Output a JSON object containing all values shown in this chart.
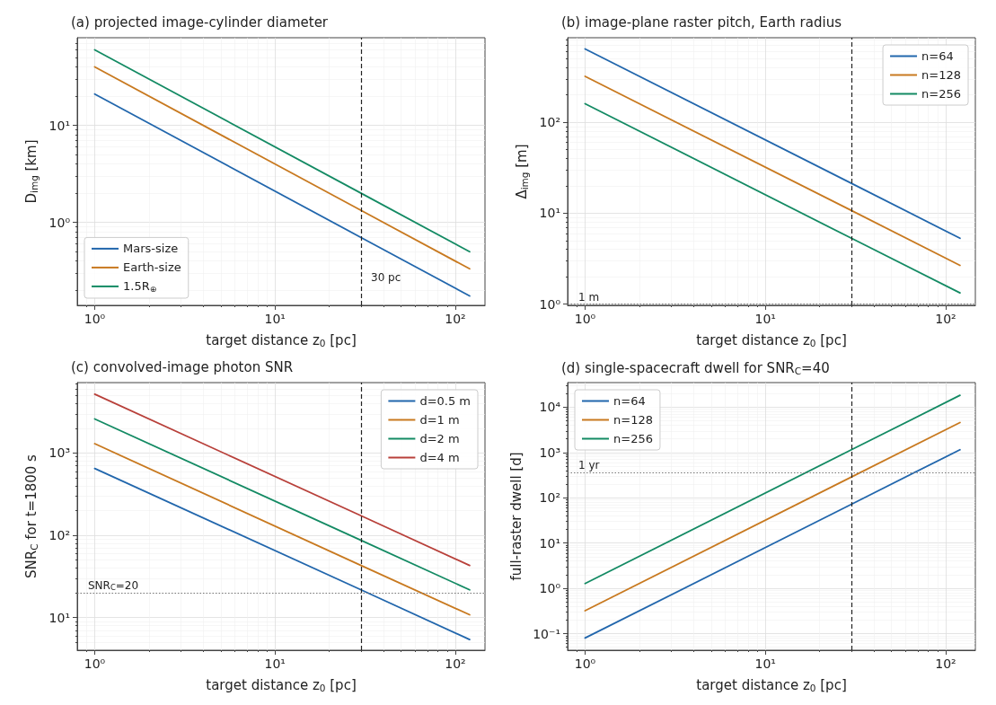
{
  "chart_data": [
    {
      "type": "line",
      "title": "(a) projected image-cylinder diameter",
      "xlabel": "target distance z$_{0}$ [pc]",
      "ylabel": "D$_{img}$ [km]",
      "log": "xy",
      "grid": true,
      "legend": "bottom left",
      "x": [
        1,
        30,
        120
      ],
      "xlim": [
        0.8,
        146
      ],
      "xticks": [
        {
          "value": 1,
          "label": "10⁰"
        },
        {
          "value": 10,
          "label": "10¹"
        },
        {
          "value": 100,
          "label": "10²"
        }
      ],
      "ylim": [
        0.14,
        80
      ],
      "yticks": [
        {
          "value": 1,
          "label": "10⁰"
        },
        {
          "value": 10,
          "label": "10¹"
        }
      ],
      "series": [
        {
          "name": "Mars-size",
          "color": "#2166ac",
          "values": [
            21,
            0.7,
            0.175
          ]
        },
        {
          "name": "Earth-size",
          "color": "#c8791f",
          "values": [
            40,
            1.33,
            0.333
          ]
        },
        {
          "name": "1.5R$_{⊕}$",
          "color": "#138a63",
          "values": [
            60,
            2.0,
            0.5
          ]
        }
      ],
      "ref_lines": [
        {
          "axis": "x",
          "value": 30,
          "label": "30 pc",
          "color": "#222222",
          "line_style": "dashed"
        }
      ]
    },
    {
      "type": "line",
      "title": "(b) image-plane raster pitch, Earth radius",
      "xlabel": "target distance z$_{0}$ [pc]",
      "ylabel": "Δ$_{img}$ [m]",
      "log": "xy",
      "grid": true,
      "legend": "top right",
      "x": [
        1,
        30,
        120
      ],
      "xlim": [
        0.8,
        146
      ],
      "xticks": [
        {
          "value": 1,
          "label": "10⁰"
        },
        {
          "value": 10,
          "label": "10¹"
        },
        {
          "value": 100,
          "label": "10²"
        }
      ],
      "ylim": [
        0.97,
        850
      ],
      "yticks": [
        {
          "value": 1,
          "label": "10⁰"
        },
        {
          "value": 10,
          "label": "10¹"
        },
        {
          "value": 100,
          "label": "10²"
        }
      ],
      "series": [
        {
          "name": "n=64",
          "color": "#2166ac",
          "values": [
            640,
            21.3,
            5.3
          ]
        },
        {
          "name": "n=128",
          "color": "#c8791f",
          "values": [
            320,
            10.7,
            2.67
          ]
        },
        {
          "name": "n=256",
          "color": "#138a63",
          "values": [
            160,
            5.3,
            1.33
          ]
        }
      ],
      "ref_lines": [
        {
          "axis": "x",
          "value": 30,
          "label": null,
          "color": "#222222",
          "line_style": "dashed"
        },
        {
          "axis": "y",
          "value": 1,
          "label": "1 m",
          "color": "#777777",
          "line_style": "dotted"
        }
      ]
    },
    {
      "type": "line",
      "title": "(c) convolved-image photon SNR",
      "xlabel": "target distance z$_{0}$ [pc]",
      "ylabel": "SNR$_{C}$ for t=1800 s",
      "log": "xy",
      "grid": true,
      "legend": "top right",
      "x": [
        1,
        30,
        120
      ],
      "xlim": [
        0.8,
        146
      ],
      "xticks": [
        {
          "value": 1,
          "label": "10⁰"
        },
        {
          "value": 10,
          "label": "10¹"
        },
        {
          "value": 100,
          "label": "10²"
        }
      ],
      "ylim": [
        4,
        7200
      ],
      "yticks": [
        {
          "value": 10,
          "label": "10¹"
        },
        {
          "value": 100,
          "label": "10²"
        },
        {
          "value": 1000,
          "label": "10³"
        }
      ],
      "series": [
        {
          "name": "d=0.5 m",
          "color": "#2166ac",
          "values": [
            650,
            21.7,
            5.4
          ]
        },
        {
          "name": "d=1 m",
          "color": "#c8791f",
          "values": [
            1300,
            43,
            10.8
          ]
        },
        {
          "name": "d=2 m",
          "color": "#138a63",
          "values": [
            2600,
            87,
            21.7
          ]
        },
        {
          "name": "d=4 m",
          "color": "#b8403a",
          "values": [
            5200,
            173,
            43
          ]
        }
      ],
      "ref_lines": [
        {
          "axis": "x",
          "value": 30,
          "label": null,
          "color": "#222222",
          "line_style": "dashed"
        },
        {
          "axis": "y",
          "value": 20,
          "label": "SNR$_{C}$=20",
          "color": "#777777",
          "line_style": "dotted"
        }
      ]
    },
    {
      "type": "line",
      "title": "(d) single-spacecraft dwell for SNR$_{C}$=40",
      "xlabel": "target distance z$_{0}$ [pc]",
      "ylabel": "full-raster dwell [d]",
      "log": "xy",
      "grid": true,
      "legend": "top left",
      "x": [
        1,
        30,
        120
      ],
      "xlim": [
        0.8,
        146
      ],
      "xticks": [
        {
          "value": 1,
          "label": "10⁰"
        },
        {
          "value": 10,
          "label": "10¹"
        },
        {
          "value": 100,
          "label": "10²"
        }
      ],
      "ylim": [
        0.043,
        35000
      ],
      "yticks": [
        {
          "value": 0.1,
          "label": "10⁻¹"
        },
        {
          "value": 1,
          "label": "10⁰"
        },
        {
          "value": 10,
          "label": "10¹"
        },
        {
          "value": 100,
          "label": "10²"
        },
        {
          "value": 1000,
          "label": "10³"
        },
        {
          "value": 10000,
          "label": "10⁴"
        }
      ],
      "series": [
        {
          "name": "n=64",
          "color": "#2166ac",
          "values": [
            0.08,
            72,
            1150
          ]
        },
        {
          "name": "n=128",
          "color": "#c8791f",
          "values": [
            0.32,
            288,
            4600
          ]
        },
        {
          "name": "n=256",
          "color": "#138a63",
          "values": [
            1.28,
            1150,
            18400
          ]
        }
      ],
      "ref_lines": [
        {
          "axis": "x",
          "value": 30,
          "label": null,
          "color": "#222222",
          "line_style": "dashed"
        },
        {
          "axis": "y",
          "value": 365,
          "label": "1 yr",
          "color": "#777777",
          "line_style": "dotted"
        }
      ]
    }
  ]
}
